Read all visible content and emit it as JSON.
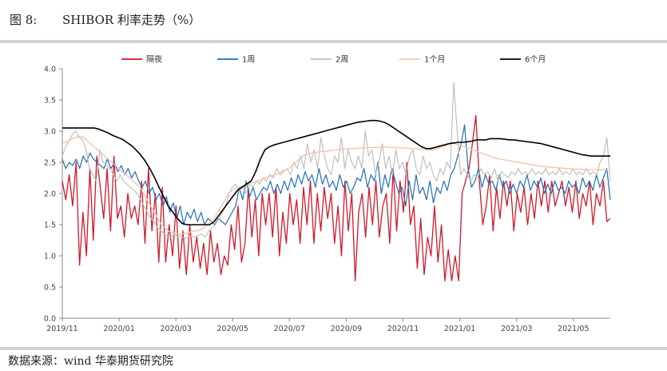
{
  "figure": {
    "label": "图 8:",
    "title": "SHIBOR 利率走势（%）"
  },
  "source": "数据来源：wind 华泰期货研究院",
  "chart_data": {
    "type": "line",
    "ylim": [
      0,
      4.0
    ],
    "yticks": [
      "0.0",
      "0.5",
      "1.0",
      "1.5",
      "2.0",
      "2.5",
      "3.0",
      "3.5",
      "4.0"
    ],
    "xticks": [
      "2019/11",
      "2020/01",
      "2020/03",
      "2020/05",
      "2020/07",
      "2020/09",
      "2020/11",
      "2021/01",
      "2021/03",
      "2021/05"
    ],
    "legend_position": "top",
    "grid": false,
    "series": [
      {
        "name": "隔夜",
        "color": "#d0182a",
        "width": 1.3,
        "values": [
          2.2,
          1.9,
          2.3,
          1.8,
          2.5,
          0.85,
          1.7,
          1.0,
          2.4,
          1.25,
          2.6,
          2.1,
          1.6,
          2.4,
          1.4,
          2.6,
          1.6,
          1.8,
          1.3,
          2.0,
          1.6,
          1.8,
          1.5,
          2.2,
          1.2,
          2.4,
          1.4,
          2.0,
          0.9,
          2.1,
          0.9,
          1.5,
          1.0,
          1.8,
          0.8,
          1.4,
          0.7,
          1.5,
          0.9,
          1.3,
          0.8,
          1.2,
          0.7,
          1.4,
          0.9,
          1.2,
          0.7,
          1.0,
          0.85,
          1.5,
          1.1,
          1.8,
          0.9,
          1.2,
          2.1,
          1.3,
          1.9,
          1.0,
          2.0,
          1.5,
          2.0,
          1.3,
          2.1,
          1.0,
          1.7,
          1.2,
          2.0,
          1.5,
          1.9,
          1.2,
          2.1,
          1.5,
          2.2,
          1.2,
          2.0,
          1.4,
          2.1,
          1.6,
          2.0,
          1.2,
          1.8,
          1.0,
          2.2,
          1.4,
          2.0,
          0.6,
          1.7,
          2.0,
          1.3,
          2.1,
          1.5,
          2.2,
          1.3,
          1.8,
          2.0,
          1.2,
          2.4,
          1.4,
          2.2,
          1.7,
          2.5,
          1.5,
          1.8,
          0.8,
          1.6,
          0.7,
          1.3,
          1.0,
          1.8,
          0.9,
          1.5,
          0.6,
          1.1,
          0.6,
          1.0,
          0.6,
          2.0,
          2.2,
          2.4,
          2.8,
          3.25,
          2.2,
          1.5,
          1.8,
          2.3,
          1.4,
          2.1,
          1.6,
          2.2,
          1.8,
          2.2,
          1.4,
          2.0,
          1.7,
          2.1,
          1.5,
          2.0,
          1.6,
          2.2,
          1.8,
          2.2,
          1.7,
          2.2,
          1.8,
          2.0,
          2.2,
          1.8,
          2.1,
          1.7,
          2.2,
          1.6,
          2.0,
          1.8,
          2.2,
          1.5,
          2.0,
          1.8,
          2.2,
          1.55,
          1.6
        ]
      },
      {
        "name": "1周",
        "color": "#1f6fb5",
        "width": 1.2,
        "values": [
          2.55,
          2.4,
          2.5,
          2.45,
          2.55,
          2.4,
          2.6,
          2.5,
          2.65,
          2.55,
          2.5,
          2.45,
          2.4,
          2.55,
          2.4,
          2.5,
          2.35,
          2.45,
          2.3,
          2.4,
          2.25,
          2.35,
          2.2,
          2.1,
          2.2,
          2.0,
          2.1,
          1.9,
          2.0,
          1.8,
          1.95,
          1.7,
          1.85,
          1.6,
          1.8,
          1.5,
          1.7,
          1.6,
          1.75,
          1.55,
          1.7,
          1.5,
          1.6,
          1.55,
          1.5,
          1.6,
          1.55,
          1.5,
          1.6,
          1.7,
          1.8,
          2.1,
          1.9,
          2.2,
          1.95,
          2.1,
          1.9,
          2.0,
          2.1,
          2.05,
          2.2,
          2.0,
          2.15,
          2.0,
          2.2,
          2.05,
          2.25,
          2.1,
          2.3,
          2.15,
          2.35,
          2.2,
          2.3,
          2.1,
          2.4,
          2.15,
          2.3,
          2.1,
          2.2,
          2.05,
          2.3,
          2.1,
          2.2,
          2.0,
          2.1,
          2.25,
          2.2,
          2.4,
          2.1,
          2.3,
          2.2,
          2.5,
          2.0,
          2.3,
          2.1,
          2.4,
          2.2,
          2.0,
          2.1,
          1.8,
          2.2,
          1.9,
          2.3,
          2.0,
          2.1,
          1.9,
          2.2,
          1.85,
          2.1,
          2.0,
          2.2,
          2.05,
          2.3,
          2.4,
          2.6,
          2.8,
          3.1,
          2.4,
          2.1,
          2.2,
          2.4,
          2.1,
          2.3,
          2.15,
          2.2,
          2.05,
          2.3,
          2.1,
          2.2,
          2.0,
          2.15,
          2.0,
          2.2,
          2.1,
          2.3,
          2.05,
          2.2,
          2.1,
          2.25,
          2.0,
          2.15,
          2.0,
          2.2,
          2.05,
          2.1,
          2.0,
          2.2,
          2.1,
          2.15,
          2.0,
          2.25,
          2.1,
          2.2,
          2.05,
          2.3,
          2.1,
          2.25,
          2.4,
          1.9
        ]
      },
      {
        "name": "2周",
        "color": "#bfbfbf",
        "width": 1.2,
        "values": [
          2.6,
          2.75,
          2.85,
          2.95,
          3.0,
          2.9,
          2.85,
          2.7,
          2.4,
          2.3,
          2.2,
          2.7,
          2.5,
          2.45,
          2.4,
          2.3,
          2.2,
          2.3,
          2.2,
          2.15,
          2.1,
          2.05,
          2.0,
          1.9,
          1.8,
          1.7,
          1.6,
          1.55,
          1.45,
          1.4,
          1.35,
          1.32,
          1.3,
          1.35,
          1.3,
          1.32,
          1.28,
          1.3,
          1.32,
          1.3,
          1.33,
          1.35,
          1.3,
          1.4,
          1.45,
          1.5,
          1.6,
          1.7,
          1.8,
          2.0,
          2.1,
          2.15,
          2.05,
          2.1,
          2.0,
          2.15,
          2.1,
          2.2,
          2.15,
          2.25,
          2.2,
          2.3,
          2.25,
          2.4,
          2.3,
          2.35,
          2.4,
          2.3,
          2.5,
          2.4,
          2.6,
          2.4,
          2.8,
          2.5,
          2.7,
          2.4,
          2.9,
          2.6,
          2.4,
          2.3,
          2.6,
          2.5,
          2.9,
          2.4,
          2.7,
          2.5,
          2.4,
          2.6,
          2.4,
          3.0,
          2.6,
          2.7,
          2.3,
          2.5,
          2.8,
          2.4,
          2.6,
          2.3,
          2.7,
          2.4,
          2.5,
          2.3,
          2.6,
          2.7,
          2.4,
          2.3,
          2.6,
          2.4,
          2.5,
          2.3,
          2.2,
          2.4,
          2.3,
          2.5,
          2.4,
          3.78,
          3.0,
          2.3,
          2.4,
          2.3,
          2.2,
          2.3,
          2.25,
          2.4,
          2.3,
          2.35,
          2.25,
          2.4,
          2.2,
          2.35,
          2.3,
          2.25,
          2.35,
          2.3,
          2.4,
          2.3,
          2.35,
          2.3,
          2.4,
          2.3,
          2.35,
          2.3,
          2.4,
          2.3,
          2.35,
          2.3,
          2.4,
          2.3,
          2.35,
          2.3,
          2.4,
          2.3,
          2.35,
          2.3,
          2.4,
          2.3,
          2.35,
          2.3,
          2.5,
          2.6,
          2.9,
          2.2
        ]
      },
      {
        "name": "1个月",
        "color": "#f5c5ad",
        "width": 1.4,
        "values": [
          2.8,
          2.82,
          2.85,
          2.88,
          2.9,
          2.92,
          2.9,
          2.85,
          2.8,
          2.75,
          2.7,
          2.65,
          2.6,
          2.55,
          2.5,
          2.45,
          2.4,
          2.35,
          2.3,
          2.25,
          2.2,
          2.15,
          2.1,
          2.0,
          1.9,
          1.8,
          1.7,
          1.6,
          1.5,
          1.45,
          1.4,
          1.38,
          1.36,
          1.35,
          1.35,
          1.36,
          1.38,
          1.4,
          1.4,
          1.42,
          1.45,
          1.5,
          1.55,
          1.6,
          1.7,
          1.8,
          1.9,
          2.0,
          2.05,
          2.08,
          2.1,
          2.12,
          2.14,
          2.16,
          2.18,
          2.2,
          2.22,
          2.24,
          2.26,
          2.28,
          2.3,
          2.32,
          2.35,
          2.38,
          2.4,
          2.45,
          2.5,
          2.55,
          2.6,
          2.62,
          2.64,
          2.65,
          2.66,
          2.67,
          2.68,
          2.68,
          2.69,
          2.7,
          2.7,
          2.71,
          2.71,
          2.72,
          2.72,
          2.72,
          2.73,
          2.73,
          2.73,
          2.74,
          2.74,
          2.74,
          2.74,
          2.75,
          2.74,
          2.74,
          2.74,
          2.73,
          2.73,
          2.73,
          2.72,
          2.72,
          2.72,
          2.71,
          2.71,
          2.7,
          2.7,
          2.7,
          2.72,
          2.74,
          2.76,
          2.78,
          2.8,
          2.8,
          2.78,
          2.76,
          2.74,
          2.72,
          2.7,
          2.68,
          2.66,
          2.64,
          2.62,
          2.6,
          2.58,
          2.56,
          2.55,
          2.54,
          2.53,
          2.52,
          2.51,
          2.5,
          2.49,
          2.48,
          2.47,
          2.46,
          2.45,
          2.44,
          2.43,
          2.43,
          2.42,
          2.42,
          2.41,
          2.41,
          2.4,
          2.4,
          2.4,
          2.39,
          2.39,
          2.39,
          2.38,
          2.38,
          2.38,
          2.38,
          2.38,
          2.38,
          2.38,
          2.38
        ]
      },
      {
        "name": "6个月",
        "color": "#000000",
        "width": 1.6,
        "values": [
          3.05,
          3.05,
          3.05,
          3.05,
          3.05,
          3.05,
          3.05,
          3.05,
          3.03,
          3.0,
          2.97,
          2.93,
          2.9,
          2.87,
          2.82,
          2.77,
          2.7,
          2.62,
          2.52,
          2.4,
          2.26,
          2.1,
          1.95,
          1.8,
          1.7,
          1.6,
          1.52,
          1.5,
          1.5,
          1.5,
          1.5,
          1.5,
          1.5,
          1.55,
          1.65,
          1.75,
          1.85,
          1.95,
          2.05,
          2.1,
          2.15,
          2.2,
          2.35,
          2.55,
          2.7,
          2.75,
          2.78,
          2.8,
          2.82,
          2.84,
          2.86,
          2.88,
          2.9,
          2.92,
          2.94,
          2.96,
          2.98,
          3.0,
          3.02,
          3.04,
          3.06,
          3.08,
          3.1,
          3.12,
          3.14,
          3.15,
          3.16,
          3.17,
          3.17,
          3.16,
          3.14,
          3.1,
          3.05,
          3.0,
          2.95,
          2.9,
          2.85,
          2.8,
          2.75,
          2.72,
          2.72,
          2.74,
          2.76,
          2.78,
          2.8,
          2.81,
          2.82,
          2.82,
          2.83,
          2.84,
          2.86,
          2.86,
          2.86,
          2.88,
          2.88,
          2.88,
          2.87,
          2.86,
          2.86,
          2.85,
          2.84,
          2.83,
          2.82,
          2.81,
          2.8,
          2.78,
          2.76,
          2.74,
          2.72,
          2.7,
          2.68,
          2.66,
          2.64,
          2.62,
          2.61,
          2.6,
          2.6,
          2.6,
          2.6,
          2.6
        ]
      }
    ]
  }
}
